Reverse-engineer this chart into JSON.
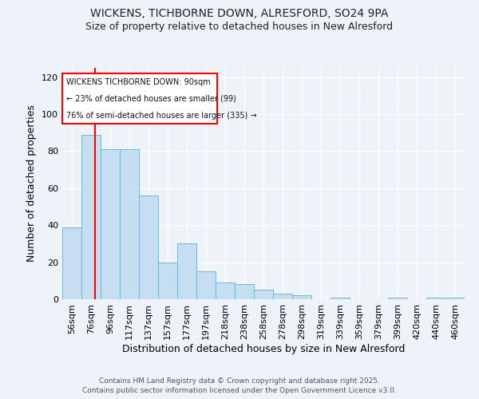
{
  "title_line1": "WICKENS, TICHBORNE DOWN, ALRESFORD, SO24 9PA",
  "title_line2": "Size of property relative to detached houses in New Alresford",
  "xlabel": "Distribution of detached houses by size in New Alresford",
  "ylabel": "Number of detached properties",
  "bar_labels": [
    "56sqm",
    "76sqm",
    "96sqm",
    "117sqm",
    "137sqm",
    "157sqm",
    "177sqm",
    "197sqm",
    "218sqm",
    "238sqm",
    "258sqm",
    "278sqm",
    "298sqm",
    "319sqm",
    "339sqm",
    "359sqm",
    "379sqm",
    "399sqm",
    "420sqm",
    "440sqm",
    "460sqm"
  ],
  "bar_values": [
    39,
    89,
    81,
    81,
    56,
    20,
    30,
    15,
    9,
    8,
    5,
    3,
    2,
    0,
    1,
    0,
    0,
    1,
    0,
    1,
    1
  ],
  "bar_color": "#c5dff0",
  "bar_edge_color": "#7ab3d4",
  "vline_color": "red",
  "annotation_line1": "WICKENS TICHBORNE DOWN: 90sqm",
  "annotation_line2": "← 23% of detached houses are smaller (99)",
  "annotation_line3": "76% of semi-detached houses are larger (335) →",
  "ylim": [
    0,
    125
  ],
  "yticks": [
    0,
    20,
    40,
    60,
    80,
    100,
    120
  ],
  "background_color": "#eef2f9",
  "grid_color": "#ffffff",
  "footer_line1": "Contains HM Land Registry data © Crown copyright and database right 2025.",
  "footer_line2": "Contains public sector information licensed under the Open Government Licence v3.0."
}
